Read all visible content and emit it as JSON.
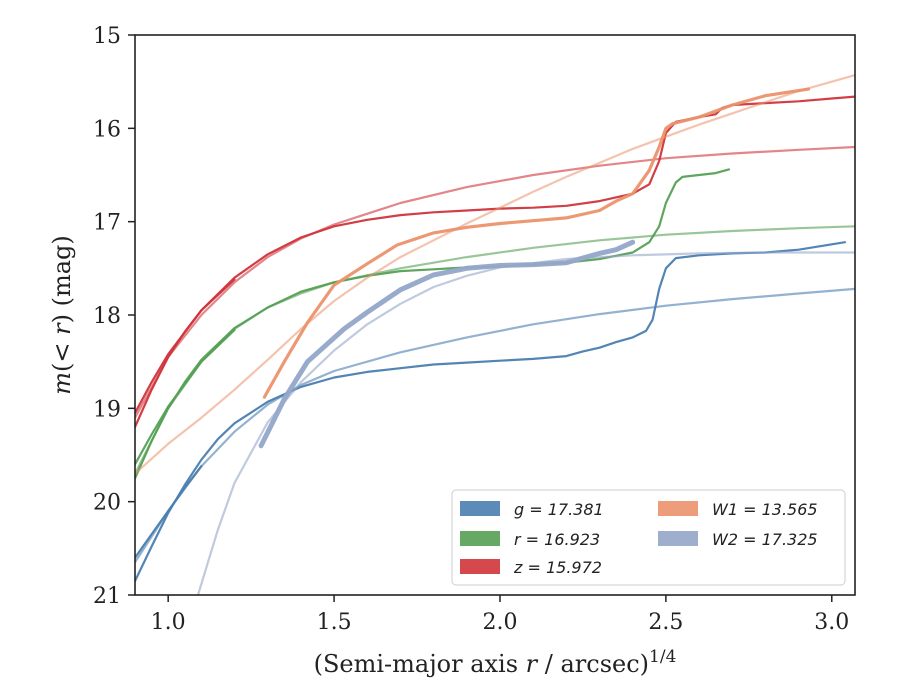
{
  "chart_data": {
    "type": "line",
    "xlabel_main": "(Semi-major axis ",
    "xlabel_var": "r",
    "xlabel_tail": " / arcsec)",
    "xlabel_sup": "1/4",
    "ylabel_pre": "m",
    "ylabel_mid": "(< ",
    "ylabel_var": "r",
    "ylabel_post": ") (mag)",
    "xlim": [
      0.9,
      3.07
    ],
    "ylim": [
      21,
      15
    ],
    "y_inverted": true,
    "xticks": [
      1.0,
      1.5,
      2.0,
      2.5,
      3.0
    ],
    "xtick_labels": [
      "1.0",
      "1.5",
      "2.0",
      "2.5",
      "3.0"
    ],
    "yticks": [
      15,
      16,
      17,
      18,
      19,
      20,
      21
    ],
    "ytick_labels": [
      "15",
      "16",
      "17",
      "18",
      "19",
      "20",
      "21"
    ],
    "grid": false,
    "legend_position": "bottom-right",
    "legend": [
      {
        "band": "g",
        "value": "17.381",
        "color": "#4a7eb0"
      },
      {
        "band": "r",
        "value": "16.923",
        "color": "#55a054"
      },
      {
        "band": "z",
        "value": "15.972",
        "color": "#d0343b"
      },
      {
        "band": "W1",
        "value": "13.565",
        "color": "#eb926b"
      },
      {
        "band": "W2",
        "value": "17.325",
        "color": "#94a6c9"
      }
    ],
    "series": [
      {
        "band": "g",
        "kind": "data",
        "color": "#4a7eb0",
        "width": 2.2,
        "points": [
          [
            0.9,
            20.85
          ],
          [
            0.95,
            20.48
          ],
          [
            1.0,
            20.12
          ],
          [
            1.05,
            19.82
          ],
          [
            1.1,
            19.55
          ],
          [
            1.15,
            19.33
          ],
          [
            1.2,
            19.16
          ],
          [
            1.3,
            18.93
          ],
          [
            1.4,
            18.77
          ],
          [
            1.5,
            18.67
          ],
          [
            1.6,
            18.61
          ],
          [
            1.7,
            18.57
          ],
          [
            1.8,
            18.53
          ],
          [
            1.9,
            18.51
          ],
          [
            2.0,
            18.49
          ],
          [
            2.1,
            18.47
          ],
          [
            2.2,
            18.44
          ],
          [
            2.25,
            18.39
          ],
          [
            2.3,
            18.35
          ],
          [
            2.35,
            18.29
          ],
          [
            2.4,
            18.24
          ],
          [
            2.44,
            18.17
          ],
          [
            2.46,
            18.05
          ],
          [
            2.48,
            17.72
          ],
          [
            2.5,
            17.5
          ],
          [
            2.53,
            17.39
          ],
          [
            2.6,
            17.36
          ],
          [
            2.7,
            17.34
          ],
          [
            2.8,
            17.33
          ],
          [
            2.9,
            17.3
          ],
          [
            3.04,
            17.22
          ]
        ]
      },
      {
        "band": "g",
        "kind": "data",
        "color": "#4a7eb0",
        "width": 2.2,
        "points": [
          [
            0.9,
            20.6
          ],
          [
            0.95,
            20.35
          ],
          [
            1.0,
            20.1
          ],
          [
            1.05,
            19.85
          ],
          [
            1.1,
            19.62
          ]
        ]
      },
      {
        "band": "g",
        "kind": "model",
        "color": "#4a7eb0",
        "width": 2.2,
        "opacity": 0.6,
        "points": [
          [
            0.9,
            20.65
          ],
          [
            1.0,
            20.1
          ],
          [
            1.1,
            19.62
          ],
          [
            1.2,
            19.25
          ],
          [
            1.3,
            18.96
          ],
          [
            1.4,
            18.75
          ],
          [
            1.5,
            18.6
          ],
          [
            1.7,
            18.4
          ],
          [
            1.9,
            18.24
          ],
          [
            2.1,
            18.1
          ],
          [
            2.3,
            17.99
          ],
          [
            2.5,
            17.9
          ],
          [
            2.7,
            17.83
          ],
          [
            2.9,
            17.77
          ],
          [
            3.07,
            17.72
          ]
        ]
      },
      {
        "band": "r",
        "kind": "data",
        "color": "#55a054",
        "width": 2.2,
        "points": [
          [
            0.9,
            19.75
          ],
          [
            0.95,
            19.35
          ],
          [
            1.0,
            19.0
          ],
          [
            1.05,
            18.72
          ],
          [
            1.1,
            18.48
          ],
          [
            1.2,
            18.14
          ],
          [
            1.3,
            17.92
          ],
          [
            1.4,
            17.75
          ],
          [
            1.5,
            17.65
          ],
          [
            1.6,
            17.58
          ],
          [
            1.7,
            17.53
          ],
          [
            1.8,
            17.51
          ],
          [
            1.9,
            17.49
          ],
          [
            2.0,
            17.48
          ],
          [
            2.1,
            17.46
          ],
          [
            2.2,
            17.44
          ],
          [
            2.3,
            17.4
          ],
          [
            2.4,
            17.33
          ],
          [
            2.45,
            17.22
          ],
          [
            2.48,
            17.05
          ],
          [
            2.5,
            16.8
          ],
          [
            2.53,
            16.58
          ],
          [
            2.55,
            16.52
          ],
          [
            2.6,
            16.5
          ],
          [
            2.65,
            16.48
          ],
          [
            2.69,
            16.44
          ]
        ]
      },
      {
        "band": "r",
        "kind": "data",
        "color": "#55a054",
        "width": 2.2,
        "points": [
          [
            0.9,
            19.6
          ],
          [
            0.95,
            19.28
          ],
          [
            1.0,
            18.98
          ],
          [
            1.1,
            18.5
          ],
          [
            1.2,
            18.16
          ]
        ]
      },
      {
        "band": "r",
        "kind": "model",
        "color": "#55a054",
        "width": 2.2,
        "opacity": 0.6,
        "points": [
          [
            0.9,
            19.7
          ],
          [
            1.0,
            19.0
          ],
          [
            1.1,
            18.5
          ],
          [
            1.2,
            18.15
          ],
          [
            1.3,
            17.92
          ],
          [
            1.4,
            17.77
          ],
          [
            1.5,
            17.65
          ],
          [
            1.7,
            17.5
          ],
          [
            1.9,
            17.38
          ],
          [
            2.1,
            17.28
          ],
          [
            2.3,
            17.2
          ],
          [
            2.5,
            17.14
          ],
          [
            2.7,
            17.1
          ],
          [
            2.9,
            17.07
          ],
          [
            3.07,
            17.05
          ]
        ]
      },
      {
        "band": "z",
        "kind": "data",
        "color": "#d0343b",
        "width": 2.2,
        "points": [
          [
            0.9,
            19.2
          ],
          [
            0.95,
            18.8
          ],
          [
            1.0,
            18.45
          ],
          [
            1.05,
            18.18
          ],
          [
            1.1,
            17.95
          ],
          [
            1.2,
            17.6
          ],
          [
            1.3,
            17.35
          ],
          [
            1.4,
            17.17
          ],
          [
            1.5,
            17.05
          ],
          [
            1.6,
            16.98
          ],
          [
            1.7,
            16.93
          ],
          [
            1.8,
            16.9
          ],
          [
            1.9,
            16.88
          ],
          [
            2.0,
            16.86
          ],
          [
            2.1,
            16.85
          ],
          [
            2.2,
            16.83
          ],
          [
            2.3,
            16.78
          ],
          [
            2.4,
            16.7
          ],
          [
            2.45,
            16.6
          ],
          [
            2.48,
            16.35
          ],
          [
            2.5,
            16.05
          ],
          [
            2.53,
            15.93
          ],
          [
            2.6,
            15.88
          ],
          [
            2.65,
            15.85
          ],
          [
            2.67,
            15.78
          ],
          [
            2.7,
            15.75
          ],
          [
            2.8,
            15.73
          ],
          [
            2.9,
            15.71
          ],
          [
            3.0,
            15.68
          ],
          [
            3.07,
            15.66
          ]
        ]
      },
      {
        "band": "z",
        "kind": "data",
        "color": "#d0343b",
        "width": 2.2,
        "points": [
          [
            0.9,
            19.05
          ],
          [
            0.95,
            18.72
          ],
          [
            1.0,
            18.42
          ],
          [
            1.1,
            17.95
          ],
          [
            1.2,
            17.62
          ]
        ]
      },
      {
        "band": "z",
        "kind": "model",
        "color": "#d0343b",
        "width": 2.2,
        "opacity": 0.6,
        "points": [
          [
            0.9,
            19.1
          ],
          [
            1.0,
            18.45
          ],
          [
            1.1,
            18.0
          ],
          [
            1.2,
            17.65
          ],
          [
            1.3,
            17.38
          ],
          [
            1.4,
            17.18
          ],
          [
            1.5,
            17.03
          ],
          [
            1.7,
            16.8
          ],
          [
            1.9,
            16.63
          ],
          [
            2.1,
            16.5
          ],
          [
            2.3,
            16.4
          ],
          [
            2.5,
            16.32
          ],
          [
            2.7,
            16.27
          ],
          [
            2.9,
            16.23
          ],
          [
            3.07,
            16.2
          ]
        ]
      },
      {
        "band": "W1",
        "kind": "data",
        "color": "#eb926b",
        "width": 3.2,
        "points": [
          [
            1.29,
            18.88
          ],
          [
            1.35,
            18.5
          ],
          [
            1.42,
            18.08
          ],
          [
            1.5,
            17.68
          ],
          [
            1.6,
            17.45
          ],
          [
            1.69,
            17.25
          ],
          [
            1.8,
            17.12
          ],
          [
            1.9,
            17.06
          ],
          [
            2.0,
            17.02
          ],
          [
            2.1,
            16.99
          ],
          [
            2.2,
            16.96
          ],
          [
            2.3,
            16.88
          ],
          [
            2.35,
            16.78
          ],
          [
            2.4,
            16.7
          ],
          [
            2.45,
            16.45
          ],
          [
            2.48,
            16.2
          ],
          [
            2.5,
            16.0
          ],
          [
            2.52,
            15.95
          ],
          [
            2.6,
            15.88
          ],
          [
            2.7,
            15.75
          ],
          [
            2.8,
            15.65
          ],
          [
            2.93,
            15.58
          ]
        ]
      },
      {
        "band": "W1",
        "kind": "model",
        "color": "#eb926b",
        "width": 2.2,
        "opacity": 0.55,
        "points": [
          [
            0.9,
            19.7
          ],
          [
            1.0,
            19.38
          ],
          [
            1.1,
            19.1
          ],
          [
            1.2,
            18.8
          ],
          [
            1.3,
            18.48
          ],
          [
            1.4,
            18.15
          ],
          [
            1.5,
            17.85
          ],
          [
            1.6,
            17.6
          ],
          [
            1.7,
            17.38
          ],
          [
            1.8,
            17.2
          ],
          [
            1.9,
            17.02
          ],
          [
            2.0,
            16.85
          ],
          [
            2.1,
            16.68
          ],
          [
            2.2,
            16.52
          ],
          [
            2.3,
            16.37
          ],
          [
            2.4,
            16.22
          ],
          [
            2.5,
            16.09
          ],
          [
            2.6,
            15.96
          ],
          [
            2.7,
            15.84
          ],
          [
            2.8,
            15.72
          ],
          [
            2.9,
            15.6
          ],
          [
            3.0,
            15.5
          ],
          [
            3.07,
            15.43
          ]
        ]
      },
      {
        "band": "W2",
        "kind": "data",
        "color": "#94a6c9",
        "width": 5,
        "points": [
          [
            1.28,
            19.4
          ],
          [
            1.35,
            18.9
          ],
          [
            1.42,
            18.5
          ],
          [
            1.53,
            18.15
          ],
          [
            1.6,
            17.97
          ],
          [
            1.7,
            17.73
          ],
          [
            1.8,
            17.57
          ],
          [
            1.9,
            17.5
          ],
          [
            2.0,
            17.47
          ],
          [
            2.1,
            17.46
          ],
          [
            2.2,
            17.44
          ],
          [
            2.3,
            17.34
          ],
          [
            2.35,
            17.3
          ],
          [
            2.4,
            17.22
          ]
        ]
      },
      {
        "band": "W2",
        "kind": "model",
        "color": "#94a6c9",
        "width": 2.2,
        "opacity": 0.6,
        "points": [
          [
            1.09,
            21.0
          ],
          [
            1.15,
            20.3
          ],
          [
            1.2,
            19.8
          ],
          [
            1.3,
            19.15
          ],
          [
            1.4,
            18.72
          ],
          [
            1.5,
            18.38
          ],
          [
            1.6,
            18.1
          ],
          [
            1.7,
            17.88
          ],
          [
            1.8,
            17.7
          ],
          [
            1.9,
            17.58
          ],
          [
            2.0,
            17.49
          ],
          [
            2.2,
            17.4
          ],
          [
            2.4,
            17.36
          ],
          [
            2.6,
            17.34
          ],
          [
            2.8,
            17.33
          ],
          [
            3.07,
            17.33
          ]
        ]
      }
    ]
  }
}
